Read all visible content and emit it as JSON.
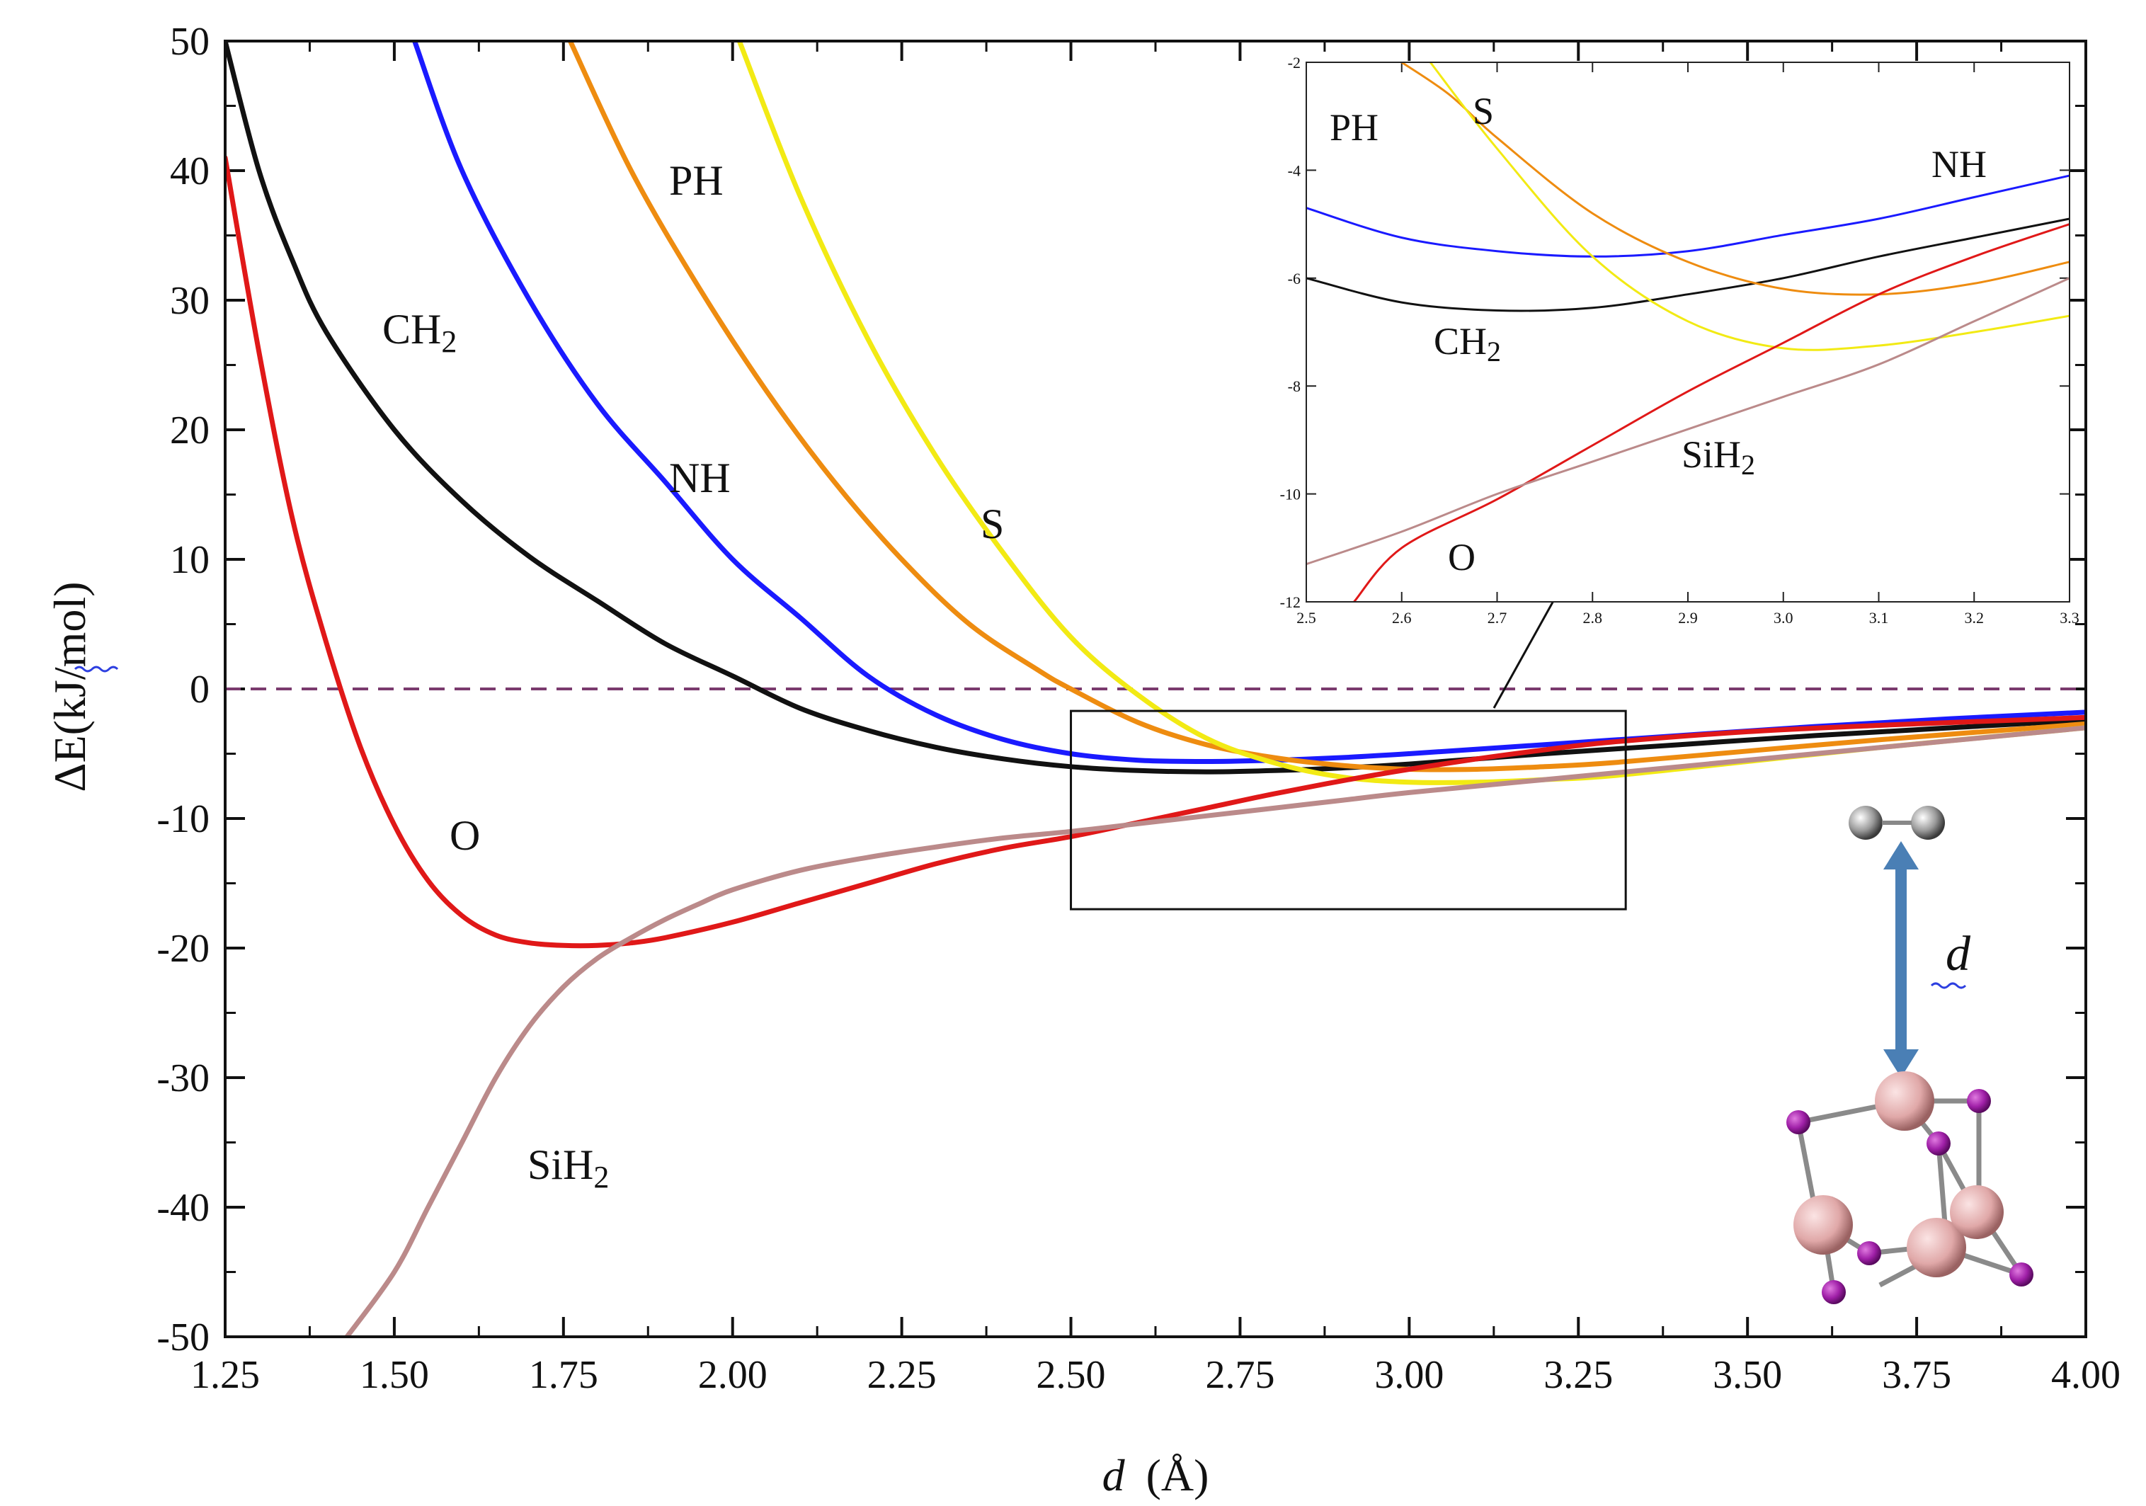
{
  "chart_data": {
    "type": "line",
    "xlabel_var": "d",
    "xlabel_unit": "(Å)",
    "ylabel": "ΔE(kJ/mol)",
    "xlim": [
      1.25,
      4.0
    ],
    "ylim": [
      -50,
      50
    ],
    "x_ticks": [
      1.25,
      1.5,
      1.75,
      2.0,
      2.25,
      2.5,
      2.75,
      3.0,
      3.25,
      3.5,
      3.75,
      4.0
    ],
    "x_tick_labels": [
      "1.25",
      "1.50",
      "1.75",
      "2.00",
      "2.25",
      "2.50",
      "2.75",
      "3.00",
      "3.25",
      "3.50",
      "3.75",
      "4.00"
    ],
    "y_ticks": [
      -50,
      -40,
      -30,
      -20,
      -10,
      0,
      10,
      20,
      30,
      40,
      50
    ],
    "y_tick_labels": [
      "-50",
      "-40",
      "-30",
      "-20",
      "-10",
      "0",
      "10",
      "20",
      "30",
      "40",
      "50"
    ],
    "zero_line": {
      "y": 0,
      "style": "dashed",
      "color": "#7a3a6e"
    },
    "series": [
      {
        "name": "CH2",
        "label_main": "CH",
        "label_sub": "2",
        "color": "#111111",
        "x": [
          1.25,
          1.3,
          1.35,
          1.4,
          1.5,
          1.6,
          1.7,
          1.8,
          1.9,
          2.0,
          2.1,
          2.2,
          2.3,
          2.4,
          2.5,
          2.6,
          2.7,
          2.8,
          2.9,
          3.0,
          3.2,
          3.4,
          3.6,
          3.8,
          4.0
        ],
        "y": [
          50,
          40,
          33,
          27.5,
          20,
          14.5,
          10.2,
          6.8,
          3.5,
          1.0,
          -1.5,
          -3.2,
          -4.5,
          -5.4,
          -6.0,
          -6.3,
          -6.4,
          -6.3,
          -6.1,
          -5.8,
          -5.0,
          -4.3,
          -3.6,
          -3.0,
          -2.4
        ]
      },
      {
        "name": "NH",
        "label_main": "NH",
        "label_sub": "",
        "color": "#1a1aff",
        "x": [
          1.53,
          1.6,
          1.7,
          1.8,
          1.9,
          2.0,
          2.1,
          2.2,
          2.3,
          2.4,
          2.5,
          2.6,
          2.7,
          2.8,
          2.9,
          3.0,
          3.2,
          3.4,
          3.6,
          3.8,
          4.0
        ],
        "y": [
          50,
          40,
          30,
          22,
          16,
          10,
          5.5,
          1.0,
          -2.0,
          -3.9,
          -5.0,
          -5.5,
          -5.6,
          -5.5,
          -5.3,
          -5.0,
          -4.3,
          -3.6,
          -2.9,
          -2.3,
          -1.8
        ]
      },
      {
        "name": "PH",
        "label_main": "PH",
        "label_sub": "",
        "color": "#ee8c10",
        "x": [
          1.76,
          1.85,
          1.95,
          2.05,
          2.15,
          2.25,
          2.35,
          2.45,
          2.5,
          2.6,
          2.7,
          2.8,
          2.9,
          3.0,
          3.1,
          3.2,
          3.3,
          3.5,
          3.7,
          4.0
        ],
        "y": [
          50,
          40,
          31,
          23,
          16,
          10,
          5.0,
          1.5,
          0.0,
          -2.6,
          -4.3,
          -5.3,
          -5.9,
          -6.2,
          -6.2,
          -6.0,
          -5.7,
          -4.8,
          -3.9,
          -2.7
        ]
      },
      {
        "name": "S",
        "label_main": "S",
        "label_sub": "",
        "color": "#f2ea14",
        "x": [
          2.01,
          2.1,
          2.2,
          2.3,
          2.4,
          2.5,
          2.6,
          2.7,
          2.8,
          2.9,
          3.0,
          3.1,
          3.2,
          3.3,
          3.5,
          3.7,
          4.0
        ],
        "y": [
          50,
          38,
          27,
          18,
          10.5,
          4.0,
          -0.5,
          -3.8,
          -5.7,
          -6.8,
          -7.2,
          -7.2,
          -7.0,
          -6.7,
          -5.6,
          -4.5,
          -3.0
        ]
      },
      {
        "name": "O",
        "label_main": "O",
        "label_sub": "",
        "color": "#e01818",
        "x": [
          1.25,
          1.3,
          1.35,
          1.4,
          1.45,
          1.5,
          1.55,
          1.6,
          1.65,
          1.7,
          1.75,
          1.8,
          1.85,
          1.9,
          2.0,
          2.1,
          2.2,
          2.3,
          2.4,
          2.5,
          2.6,
          2.7,
          2.8,
          2.9,
          3.0,
          3.1,
          3.2,
          3.3,
          3.5,
          3.7,
          4.0
        ],
        "y": [
          41,
          26,
          13,
          3.5,
          -4.5,
          -10.5,
          -14.8,
          -17.5,
          -19.0,
          -19.6,
          -19.8,
          -19.8,
          -19.6,
          -19.2,
          -18.0,
          -16.5,
          -15.0,
          -13.5,
          -12.3,
          -11.4,
          -10.3,
          -9.2,
          -8.1,
          -7.1,
          -6.2,
          -5.4,
          -4.7,
          -4.1,
          -3.3,
          -2.8,
          -2.2
        ]
      },
      {
        "name": "SiH2",
        "label_main": "SiH",
        "label_sub": "2",
        "color": "#bb8a8a",
        "x": [
          1.43,
          1.5,
          1.55,
          1.6,
          1.65,
          1.7,
          1.75,
          1.8,
          1.85,
          1.9,
          1.95,
          2.0,
          2.1,
          2.2,
          2.3,
          2.4,
          2.5,
          2.6,
          2.7,
          2.8,
          2.9,
          3.0,
          3.2,
          3.4,
          3.6,
          3.8,
          4.0
        ],
        "y": [
          -50,
          -45,
          -40,
          -35,
          -30,
          -26,
          -23,
          -20.8,
          -19.2,
          -17.8,
          -16.6,
          -15.5,
          -14.0,
          -13.0,
          -12.2,
          -11.5,
          -11.0,
          -10.4,
          -9.8,
          -9.2,
          -8.6,
          -8.0,
          -7.0,
          -6.0,
          -5.0,
          -4.0,
          -3.0
        ]
      }
    ],
    "inset": {
      "xlim": [
        2.5,
        3.3
      ],
      "ylim": [
        -12,
        -2
      ],
      "x_ticks": [
        2.5,
        2.6,
        2.7,
        2.8,
        2.9,
        3.0,
        3.1,
        3.2,
        3.3
      ],
      "x_tick_labels": [
        "2.5",
        "2.6",
        "2.7",
        "2.8",
        "2.9",
        "3.0",
        "3.1",
        "3.2",
        "3.3"
      ],
      "y_ticks": [
        -12,
        -10,
        -8,
        -6,
        -4,
        -2
      ],
      "y_tick_labels": [
        "-12",
        "-10",
        "-8",
        "-6",
        "-4",
        "-2"
      ],
      "zoom_region": {
        "x": [
          2.5,
          3.32
        ],
        "y": [
          -17,
          -1.7
        ]
      },
      "series": [
        {
          "name": "NH",
          "color": "#1a1aff",
          "x": [
            2.5,
            2.6,
            2.7,
            2.8,
            2.9,
            3.0,
            3.1,
            3.2,
            3.3
          ],
          "y": [
            -4.7,
            -5.25,
            -5.5,
            -5.6,
            -5.5,
            -5.2,
            -4.9,
            -4.5,
            -4.1
          ]
        },
        {
          "name": "CH2",
          "color": "#111111",
          "x": [
            2.5,
            2.6,
            2.7,
            2.8,
            2.9,
            3.0,
            3.1,
            3.2,
            3.3
          ],
          "y": [
            -6.0,
            -6.45,
            -6.6,
            -6.55,
            -6.3,
            -6.0,
            -5.6,
            -5.25,
            -4.9
          ]
        },
        {
          "name": "PH",
          "color": "#ee8c10",
          "x": [
            2.6,
            2.65,
            2.7,
            2.8,
            2.9,
            3.0,
            3.1,
            3.2,
            3.3
          ],
          "y": [
            -2.0,
            -2.6,
            -3.4,
            -4.8,
            -5.7,
            -6.2,
            -6.3,
            -6.1,
            -5.7
          ]
        },
        {
          "name": "S",
          "color": "#f2ea14",
          "x": [
            2.63,
            2.7,
            2.8,
            2.9,
            3.0,
            3.1,
            3.2,
            3.3
          ],
          "y": [
            -2.0,
            -3.6,
            -5.6,
            -6.8,
            -7.3,
            -7.25,
            -7.0,
            -6.7
          ]
        },
        {
          "name": "O",
          "color": "#e01818",
          "x": [
            2.55,
            2.6,
            2.7,
            2.8,
            2.9,
            3.0,
            3.1,
            3.2,
            3.3
          ],
          "y": [
            -12.0,
            -11.0,
            -10.1,
            -9.1,
            -8.1,
            -7.2,
            -6.3,
            -5.6,
            -5.0
          ]
        },
        {
          "name": "SiH2",
          "color": "#bb8a8a",
          "x": [
            2.5,
            2.6,
            2.7,
            2.8,
            2.9,
            3.0,
            3.1,
            3.2,
            3.3
          ],
          "y": [
            -11.3,
            -10.7,
            -10.0,
            -9.4,
            -8.8,
            -8.2,
            -7.6,
            -6.8,
            -6.0
          ]
        }
      ]
    },
    "molecule_label": "d"
  }
}
